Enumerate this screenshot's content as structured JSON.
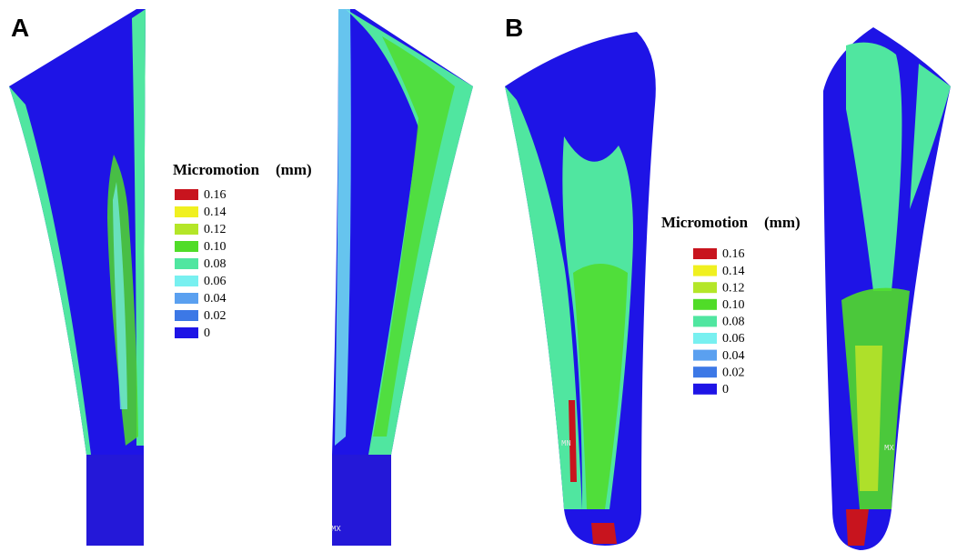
{
  "panels": [
    {
      "label": "A",
      "markers": [
        "MX"
      ],
      "legend": {
        "title": "Micromotion",
        "unit": "(mm)",
        "entries": [
          {
            "label": "0.16",
            "color": "#c8141e"
          },
          {
            "label": "0.14",
            "color": "#f0f020"
          },
          {
            "label": "0.12",
            "color": "#b4e628"
          },
          {
            "label": "0.10",
            "color": "#50dc28"
          },
          {
            "label": "0.08",
            "color": "#50e6a0"
          },
          {
            "label": "0.06",
            "color": "#78f0f0"
          },
          {
            "label": "0.04",
            "color": "#5aa0f0"
          },
          {
            "label": "0.02",
            "color": "#3c78e6"
          },
          {
            "label": "0",
            "color": "#1e14e6"
          }
        ]
      }
    },
    {
      "label": "B",
      "markers": [
        "MN",
        "MX"
      ],
      "legend": {
        "title": "Micromotion",
        "unit": "(mm)",
        "entries": [
          {
            "label": "0.16",
            "color": "#c8141e"
          },
          {
            "label": "0.14",
            "color": "#f0f020"
          },
          {
            "label": "0.12",
            "color": "#b4e628"
          },
          {
            "label": "0.10",
            "color": "#50dc28"
          },
          {
            "label": "0.08",
            "color": "#50e6a0"
          },
          {
            "label": "0.06",
            "color": "#78f0f0"
          },
          {
            "label": "0.04",
            "color": "#5aa0f0"
          },
          {
            "label": "0.02",
            "color": "#3c78e6"
          },
          {
            "label": "0",
            "color": "#1e14e6"
          }
        ]
      }
    }
  ]
}
